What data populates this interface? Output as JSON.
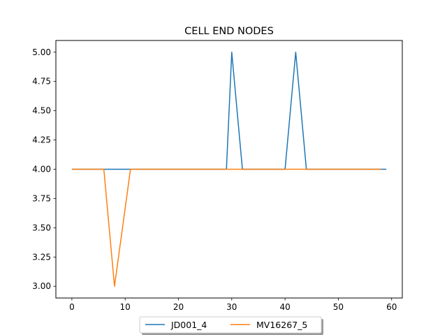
{
  "chart_data": {
    "type": "line",
    "title": "CELL END NODES",
    "xlabel": "",
    "ylabel": "",
    "xlim": [
      -3,
      62
    ],
    "ylim": [
      2.9,
      5.1
    ],
    "xticks": [
      0,
      10,
      20,
      30,
      40,
      50,
      60
    ],
    "yticks": [
      3.0,
      3.25,
      3.5,
      3.75,
      4.0,
      4.25,
      4.5,
      4.75,
      5.0
    ],
    "xtick_labels": [
      "0",
      "10",
      "20",
      "30",
      "40",
      "50",
      "60"
    ],
    "ytick_labels": [
      "3.00",
      "3.25",
      "3.50",
      "3.75",
      "4.00",
      "4.25",
      "4.50",
      "4.75",
      "5.00"
    ],
    "grid": false,
    "legend_position": "bottom-center",
    "series": [
      {
        "name": "JD001_4",
        "color": "#1f77b4",
        "x": [
          0,
          29,
          30,
          32,
          40,
          42,
          44,
          59
        ],
        "y": [
          4,
          4,
          5,
          4,
          4,
          5,
          4,
          4
        ]
      },
      {
        "name": "MV16267_5",
        "color": "#ff7f0e",
        "x": [
          0,
          6,
          8,
          11,
          58
        ],
        "y": [
          4,
          4,
          3,
          4,
          4
        ]
      }
    ]
  }
}
